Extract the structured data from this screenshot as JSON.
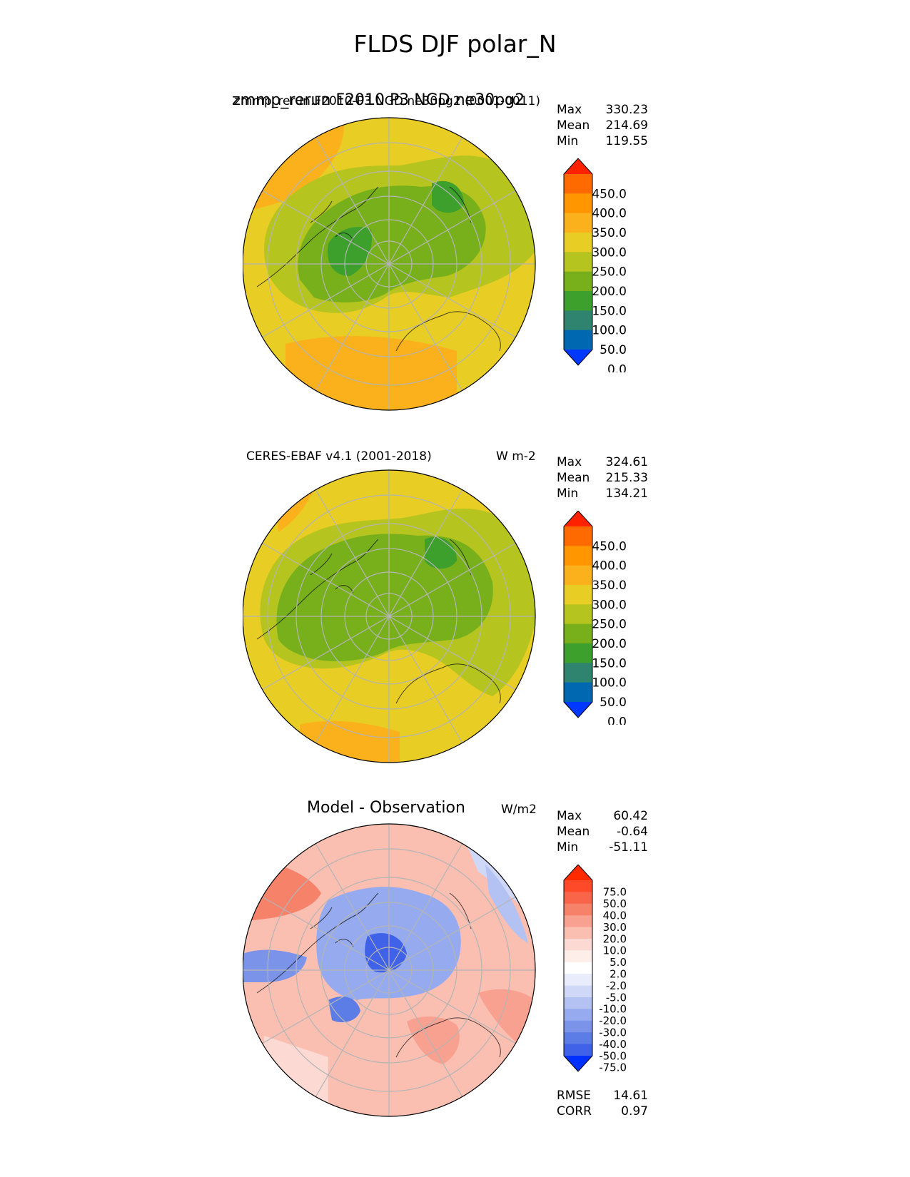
{
  "figure": {
    "suptitle": "FLDS DJF polar_N"
  },
  "panels": [
    {
      "id": "test",
      "title_center": "zmmp_rerun F2010 P3 NGD ne30pg2",
      "title_left": "zmmp_rerun.F2010-P3.NGD.ne30pg2 (0001-0011)",
      "units": "",
      "stats": [
        {
          "label": "Max",
          "value": "330.23"
        },
        {
          "label": "Mean",
          "value": "214.69"
        },
        {
          "label": "Min",
          "value": "119.55"
        }
      ],
      "colorbar": {
        "ticks": [
          "450.0",
          "400.0",
          "350.0",
          "300.0",
          "250.0",
          "200.0",
          "150.0",
          "100.0",
          "50.0",
          "0.0"
        ],
        "colors": [
          "#ff2200",
          "#ff6a00",
          "#ff9600",
          "#fbb11c",
          "#e8cd24",
          "#b5c41e",
          "#77b01a",
          "#3d9f2c",
          "#2f8470",
          "#0068b0",
          "#0038ff"
        ]
      }
    },
    {
      "id": "ref",
      "title_left": "CERES-EBAF v4.1 (2001-2018)",
      "units": "W m-2",
      "stats": [
        {
          "label": "Max",
          "value": "324.61"
        },
        {
          "label": "Mean",
          "value": "215.33"
        },
        {
          "label": "Min",
          "value": "134.21"
        }
      ],
      "colorbar": {
        "ticks": [
          "450.0",
          "400.0",
          "350.0",
          "300.0",
          "250.0",
          "200.0",
          "150.0",
          "100.0",
          "50.0",
          "0.0"
        ],
        "colors": [
          "#ff2200",
          "#ff6a00",
          "#ff9600",
          "#fbb11c",
          "#e8cd24",
          "#b5c41e",
          "#77b01a",
          "#3d9f2c",
          "#2f8470",
          "#0068b0",
          "#0038ff"
        ]
      }
    },
    {
      "id": "diff",
      "title_center": "Model - Observation",
      "units": "W/m2",
      "stats": [
        {
          "label": "Max",
          "value": "60.42"
        },
        {
          "label": "Mean",
          "value": "-0.64"
        },
        {
          "label": "Min",
          "value": "-51.11"
        }
      ],
      "colorbar": {
        "ticks": [
          "75.0",
          "50.0",
          "40.0",
          "30.0",
          "20.0",
          "10.0",
          "5.0",
          "2.0",
          "-2.0",
          "-5.0",
          "-10.0",
          "-20.0",
          "-30.0",
          "-40.0",
          "-50.0",
          "-75.0"
        ],
        "colors": [
          "#ff2a00",
          "#ff4a2a",
          "#f86548",
          "#f7826a",
          "#f9a190",
          "#fbbfb2",
          "#fcd9d2",
          "#fdeeea",
          "#ffffff",
          "#e8ecfb",
          "#d0d8f8",
          "#b3c2f3",
          "#96abef",
          "#7b94ea",
          "#5d7de6",
          "#3f62e8",
          "#0030ff"
        ]
      },
      "metrics": [
        {
          "label": "RMSE",
          "value": "14.61"
        },
        {
          "label": "CORR",
          "value": "0.97"
        }
      ]
    }
  ],
  "chart_data": [
    {
      "type": "heatmap",
      "projection": "north-polar-stereographic",
      "title": "zmmp_rerun.F2010-P3.NGD.ne30pg2 (0001-0011)",
      "variable": "FLDS",
      "season": "DJF",
      "region": "polar_N",
      "levels": [
        0,
        50,
        100,
        150,
        200,
        250,
        300,
        350,
        400,
        450
      ],
      "stats": {
        "max": 330.23,
        "mean": 214.69,
        "min": 119.55
      }
    },
    {
      "type": "heatmap",
      "projection": "north-polar-stereographic",
      "title": "CERES-EBAF v4.1 (2001-2018)",
      "units": "W m-2",
      "levels": [
        0,
        50,
        100,
        150,
        200,
        250,
        300,
        350,
        400,
        450
      ],
      "stats": {
        "max": 324.61,
        "mean": 215.33,
        "min": 134.21
      }
    },
    {
      "type": "heatmap",
      "projection": "north-polar-stereographic",
      "title": "Model - Observation",
      "units": "W/m2",
      "levels": [
        -75,
        -50,
        -40,
        -30,
        -20,
        -10,
        -5,
        -2,
        2,
        5,
        10,
        20,
        30,
        40,
        50,
        75
      ],
      "stats": {
        "max": 60.42,
        "mean": -0.64,
        "min": -51.11,
        "rmse": 14.61,
        "corr": 0.97
      }
    }
  ]
}
